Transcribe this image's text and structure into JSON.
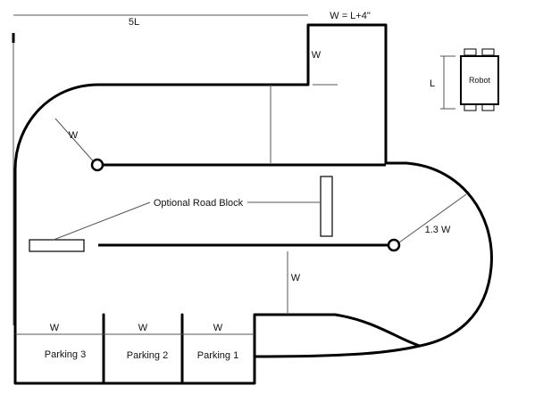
{
  "labels": {
    "top_length": "5L",
    "width_eq": "W = L+4\"",
    "w_top_box": "W",
    "w_diag": "W",
    "w_vertical": "W",
    "w_parking3": "W",
    "w_parking2": "W",
    "w_parking1": "W",
    "radius_13w": "1.3 W",
    "optional_road_block": "Optional Road Block",
    "robot_l": "L",
    "robot": "Robot"
  },
  "parking": [
    "Parking 3",
    "Parking 2",
    "Parking 1"
  ]
}
